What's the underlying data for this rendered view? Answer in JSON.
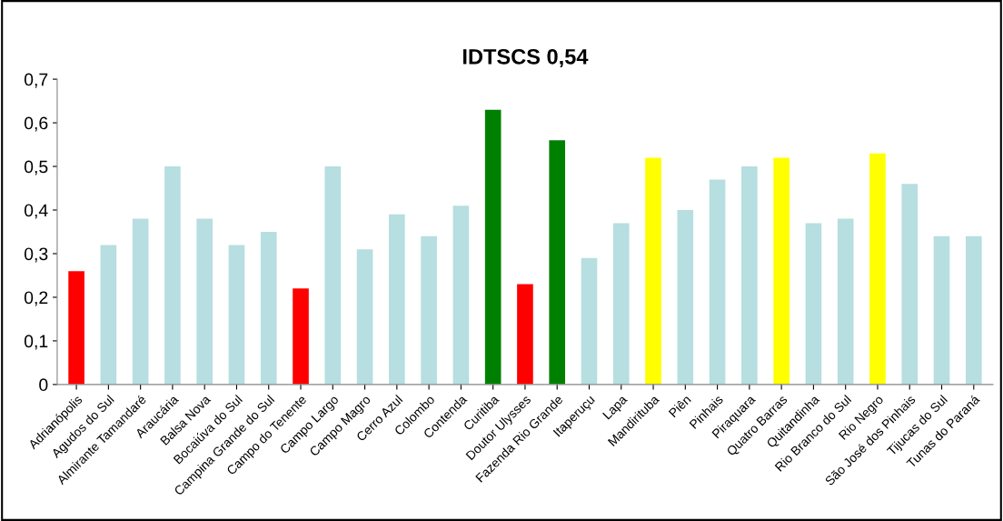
{
  "chart_data": {
    "type": "bar",
    "title": "IDTSCS 0,54",
    "categories": [
      "Adrianópolis",
      "Agudos do Sul",
      "Almirante Tamandaré",
      "Araucária",
      "Balsa Nova",
      "Bocaiúva do Sul",
      "Campina Grande do Sul",
      "Campo do Tenente",
      "Campo Largo",
      "Campo Magro",
      "Cerro Azul",
      "Colombo",
      "Contenda",
      "Curitiba",
      "Doutor Ulysses",
      "Fazenda Rio Grande",
      "Itaperuçu",
      "Lapa",
      "Mandirituba",
      "Piên",
      "Pinhais",
      "Piraquara",
      "Quatro Barras",
      "Quitandinha",
      "Rio Branco do Sul",
      "Rio Negro",
      "São José dos Pinhais",
      "Tijucas do Sul",
      "Tunas do Paraná"
    ],
    "values": [
      0.26,
      0.32,
      0.38,
      0.5,
      0.38,
      0.32,
      0.35,
      0.22,
      0.5,
      0.31,
      0.39,
      0.34,
      0.41,
      0.63,
      0.23,
      0.56,
      0.29,
      0.37,
      0.52,
      0.4,
      0.47,
      0.5,
      0.52,
      0.37,
      0.38,
      0.53,
      0.46,
      0.34,
      0.34
    ],
    "colors": [
      "#ff0000",
      "#b7dee0",
      "#b7dee0",
      "#b7dee0",
      "#b7dee0",
      "#b7dee0",
      "#b7dee0",
      "#ff0000",
      "#b7dee0",
      "#b7dee0",
      "#b7dee0",
      "#b7dee0",
      "#b7dee0",
      "#008000",
      "#ff0000",
      "#008000",
      "#b7dee0",
      "#b7dee0",
      "#ffff00",
      "#b7dee0",
      "#b7dee0",
      "#b7dee0",
      "#ffff00",
      "#b7dee0",
      "#b7dee0",
      "#ffff00",
      "#b7dee0",
      "#b7dee0",
      "#b7dee0"
    ],
    "ylim": [
      0,
      0.7
    ],
    "yticks": [
      0,
      {
        "value": 0.1,
        "label": "0,1"
      },
      {
        "value": 0.2,
        "label": "0,2"
      },
      {
        "value": 0.3,
        "label": "0,3"
      },
      {
        "value": 0.4,
        "label": "0,4"
      },
      {
        "value": 0.5,
        "label": "0,5"
      },
      {
        "value": 0.6,
        "label": "0,6"
      },
      {
        "value": 0.7,
        "label": "0,7"
      }
    ],
    "grid": false,
    "legend": false
  }
}
